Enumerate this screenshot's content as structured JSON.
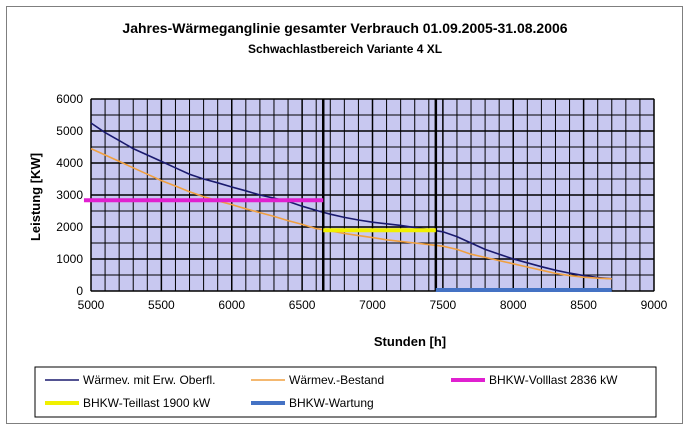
{
  "chart_data": {
    "type": "line",
    "title": "Jahres-Wärmeganglinie gesamter Verbrauch 01.09.2005-31.08.2006",
    "subtitle": "Schwachlastbereich Variante 4 XL",
    "xlabel": "Stunden [h]",
    "ylabel": "Leistung [KW]",
    "xlim": [
      5000,
      9000
    ],
    "ylim": [
      0,
      6000
    ],
    "x_ticks": [
      5000,
      5500,
      6000,
      6500,
      7000,
      7500,
      8000,
      8500,
      9000
    ],
    "y_ticks": [
      0,
      1000,
      2000,
      3000,
      4000,
      5000,
      6000
    ],
    "grid": true,
    "background_color": "#c8c8f0",
    "series": [
      {
        "name": "Wärmev. mit Erw. Oberfl.",
        "color": "#1a1a6e",
        "x": [
          5000,
          5100,
          5200,
          5300,
          5400,
          5500,
          5600,
          5700,
          5800,
          5900,
          6000,
          6100,
          6200,
          6300,
          6400,
          6500,
          6600,
          6700,
          6800,
          6900,
          7000,
          7100,
          7200,
          7300,
          7400,
          7500,
          7600,
          7700,
          7800,
          7900,
          8000,
          8100,
          8200,
          8300,
          8400,
          8500,
          8600,
          8700
        ],
        "values": [
          5250,
          4950,
          4700,
          4450,
          4250,
          4050,
          3850,
          3650,
          3500,
          3380,
          3250,
          3130,
          3000,
          2900,
          2800,
          2650,
          2520,
          2400,
          2300,
          2220,
          2150,
          2100,
          2050,
          1980,
          1920,
          1850,
          1700,
          1500,
          1300,
          1150,
          1000,
          880,
          760,
          650,
          560,
          480,
          420,
          380
        ]
      },
      {
        "name": "Wärmev.-Bestand",
        "color": "#f0a040",
        "x": [
          5000,
          5100,
          5200,
          5300,
          5400,
          5500,
          5600,
          5700,
          5800,
          5900,
          6000,
          6100,
          6200,
          6300,
          6400,
          6500,
          6600,
          6700,
          6800,
          6900,
          7000,
          7100,
          7200,
          7300,
          7400,
          7500,
          7600,
          7700,
          7800,
          7900,
          8000,
          8100,
          8200,
          8300,
          8400,
          8500,
          8600,
          8700
        ],
        "values": [
          4450,
          4250,
          4050,
          3850,
          3650,
          3450,
          3280,
          3100,
          2950,
          2820,
          2700,
          2570,
          2450,
          2330,
          2200,
          2080,
          1950,
          1880,
          1800,
          1730,
          1670,
          1600,
          1550,
          1500,
          1450,
          1400,
          1300,
          1150,
          1050,
          950,
          850,
          750,
          650,
          550,
          480,
          430,
          400,
          380
        ]
      }
    ],
    "reference_lines": [
      {
        "name": "BHKW-Volllast 2836 kW",
        "color": "#e020d0",
        "x": [
          4950,
          6650
        ],
        "y": 2836
      },
      {
        "name": "BHKW-Teillast 1900 kW",
        "color": "#f0f000",
        "x": [
          6650,
          7450
        ],
        "y": 1900
      },
      {
        "name": "BHKW-Wartung",
        "color": "#4472c4",
        "x": [
          7450,
          8700
        ],
        "y": 0
      }
    ],
    "vertical_markers": [
      6650,
      7450
    ],
    "legend_position": "bottom"
  }
}
